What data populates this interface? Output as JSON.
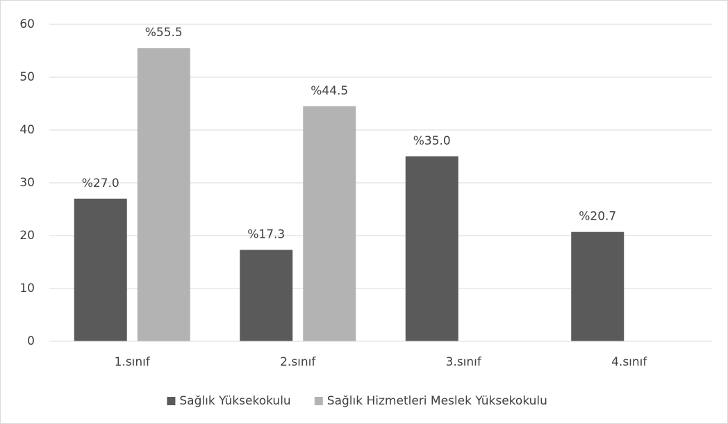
{
  "chart_data": {
    "type": "bar",
    "categories": [
      "1.sınıf",
      "2.sınıf",
      "3.sınıf",
      "4.sınıf"
    ],
    "series": [
      {
        "name": "Sağlık Yüksekokulu",
        "color": "#5a5a5a",
        "values": [
          27.0,
          17.3,
          35.0,
          20.7
        ],
        "value_labels": [
          "%27.0",
          "%17.3",
          "%35.0",
          "%20.7"
        ]
      },
      {
        "name": "Sağlık Hizmetleri Meslek Yüksekokulu",
        "color": "#b3b3b3",
        "values": [
          55.5,
          44.5,
          null,
          null
        ],
        "value_labels": [
          "%55.5",
          "%44.5",
          null,
          null
        ]
      }
    ],
    "ylim": [
      0,
      60
    ],
    "yticks": [
      0,
      10,
      20,
      30,
      40,
      50,
      60
    ],
    "grid": true,
    "legend": "bottom"
  }
}
